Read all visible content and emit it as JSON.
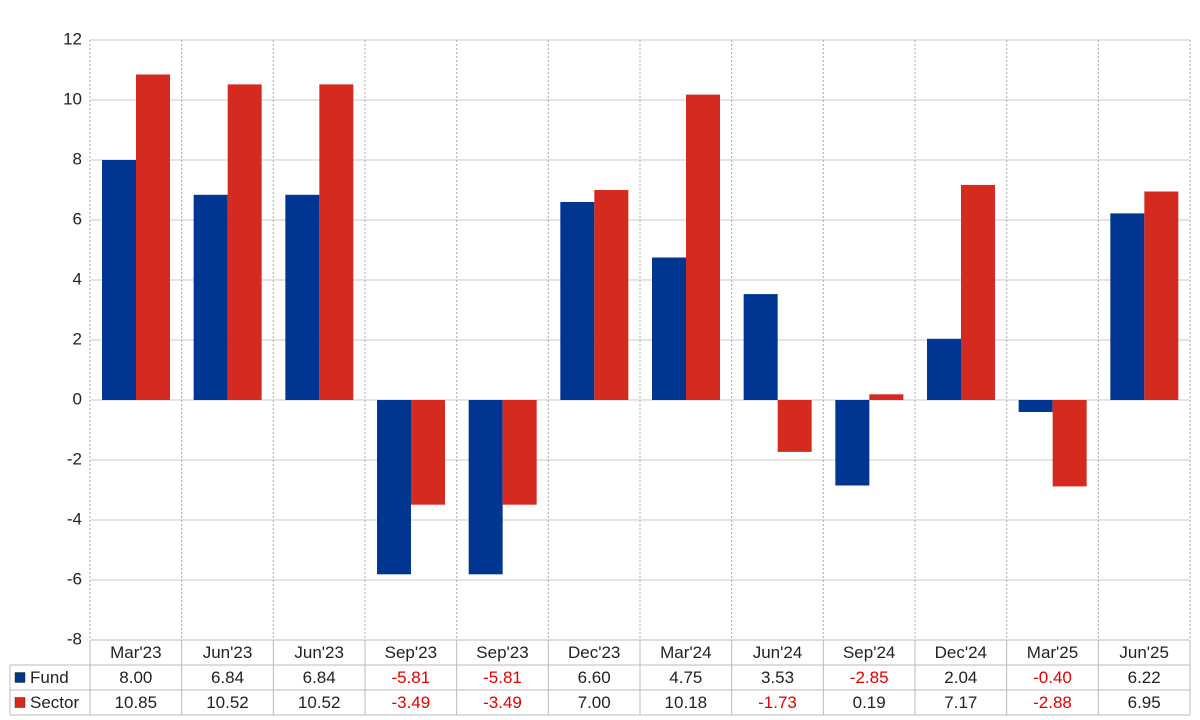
{
  "chart_data": {
    "type": "bar",
    "categories": [
      "Mar'23",
      "Jun'23",
      "Jun'23",
      "Sep'23",
      "Sep'23",
      "Dec'23",
      "Mar'24",
      "Jun'24",
      "Sep'24",
      "Dec'24",
      "Mar'25",
      "Jun'25"
    ],
    "series": [
      {
        "name": "Fund",
        "color": "#003591",
        "values": [
          8.0,
          6.84,
          6.84,
          -5.81,
          -5.81,
          6.6,
          4.75,
          3.53,
          -2.85,
          2.04,
          -0.4,
          6.22
        ],
        "value_labels": [
          "8.00",
          "6.84",
          "6.84",
          "-5.81",
          "-5.81",
          "6.60",
          "4.75",
          "3.53",
          "-2.85",
          "2.04",
          "-0.40",
          "6.22"
        ]
      },
      {
        "name": "Sector",
        "color": "#d42a20",
        "values": [
          10.85,
          10.52,
          10.52,
          -3.49,
          -3.49,
          7.0,
          10.18,
          -1.73,
          0.19,
          7.17,
          -2.88,
          6.95
        ],
        "value_labels": [
          "10.85",
          "10.52",
          "10.52",
          "-3.49",
          "-3.49",
          "7.00",
          "10.18",
          "-1.73",
          "0.19",
          "7.17",
          "-2.88",
          "6.95"
        ]
      }
    ],
    "ylim": [
      -8,
      12
    ],
    "yticks": [
      -8,
      -6,
      -4,
      -2,
      0,
      2,
      4,
      6,
      8,
      10,
      12
    ],
    "grid": true,
    "negative_label_color": "#e00000"
  }
}
